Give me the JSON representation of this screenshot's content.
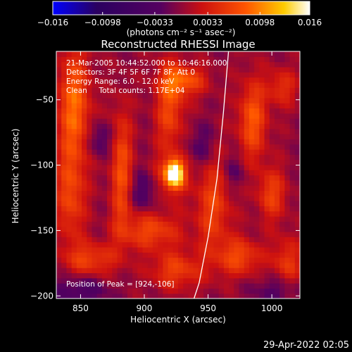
{
  "chart_data": {
    "type": "heatmap",
    "title": "Reconstructed RHESSI Image",
    "xlabel": "Heliocentric X (arcsec)",
    "ylabel": "Heliocentric Y (arcsec)",
    "xlim": [
      831,
      1022
    ],
    "ylim": [
      -202,
      -13
    ],
    "x_ticks": [
      850,
      900,
      950,
      1000
    ],
    "y_ticks": [
      -50,
      -100,
      -150,
      -200
    ],
    "colorbar": {
      "range": [
        -0.016,
        0.016
      ],
      "tick_values": [
        -0.016,
        -0.0098,
        -0.0033,
        0.0033,
        0.0098,
        0.016
      ],
      "tick_labels": [
        "−0.016",
        "−0.0098",
        "−0.0033",
        "0.0033",
        "0.0098",
        "0.016"
      ],
      "unit_label": "(photons cm⁻² s⁻¹ asec⁻²)",
      "colors": [
        "#0000ff",
        "#2a0060",
        "#550060",
        "#cc1010",
        "#ff5500",
        "#ffcc00",
        "#ffffff"
      ]
    },
    "annotations": [
      "21-Mar-2005 10:44:52.000 to 10:46:16.000",
      "Detectors: 3F 4F 5F 6F 7F 8F, Att 0",
      "Energy Range: 6.0 - 12.0 keV",
      "Clean     Total counts: 1.17E+04"
    ],
    "peak_label": "Position of Peak = [924,-106]",
    "peak": {
      "x": 924,
      "y": -106,
      "value": 0.016
    },
    "limb_curve": {
      "x": [
        966,
        962,
        957,
        950,
        943,
        939
      ],
      "y": [
        -13,
        -60,
        -110,
        -155,
        -190,
        -202
      ]
    },
    "blobs": [
      {
        "x": 924,
        "y": -106,
        "sx": 5,
        "sy": 7,
        "v": 0.016
      },
      {
        "x": 920,
        "y": -110,
        "sx": 9,
        "sy": 12,
        "v": 0.0045
      },
      {
        "x": 845,
        "y": -55,
        "sx": 9,
        "sy": 32,
        "v": 0.0085
      },
      {
        "x": 842,
        "y": -125,
        "sx": 8,
        "sy": 25,
        "v": 0.006
      },
      {
        "x": 858,
        "y": -172,
        "sx": 14,
        "sy": 9,
        "v": 0.006
      },
      {
        "x": 882,
        "y": -105,
        "sx": 6,
        "sy": 34,
        "v": 0.007
      },
      {
        "x": 920,
        "y": -55,
        "sx": 8,
        "sy": 25,
        "v": 0.0065
      },
      {
        "x": 932,
        "y": -35,
        "sx": 12,
        "sy": 8,
        "v": 0.007
      },
      {
        "x": 905,
        "y": -150,
        "sx": 16,
        "sy": 10,
        "v": 0.0065
      },
      {
        "x": 925,
        "y": -180,
        "sx": 14,
        "sy": 10,
        "v": 0.006
      },
      {
        "x": 954,
        "y": -130,
        "sx": 10,
        "sy": 28,
        "v": 0.006
      },
      {
        "x": 985,
        "y": -65,
        "sx": 8,
        "sy": 22,
        "v": 0.0075
      },
      {
        "x": 1000,
        "y": -122,
        "sx": 8,
        "sy": 14,
        "v": 0.006
      },
      {
        "x": 975,
        "y": -170,
        "sx": 12,
        "sy": 10,
        "v": 0.0065
      },
      {
        "x": 1012,
        "y": -175,
        "sx": 8,
        "sy": 14,
        "v": 0.0055
      },
      {
        "x": 1008,
        "y": -40,
        "sx": 8,
        "sy": 10,
        "v": 0.005
      },
      {
        "x": 865,
        "y": -80,
        "sx": 7,
        "sy": 9,
        "v": -0.004
      },
      {
        "x": 900,
        "y": -120,
        "sx": 8,
        "sy": 10,
        "v": -0.004
      },
      {
        "x": 945,
        "y": -85,
        "sx": 8,
        "sy": 12,
        "v": -0.0035
      },
      {
        "x": 850,
        "y": -195,
        "sx": 16,
        "sy": 8,
        "v": -0.004
      },
      {
        "x": 1005,
        "y": -195,
        "sx": 14,
        "sy": 8,
        "v": -0.0035
      },
      {
        "x": 970,
        "y": -105,
        "sx": 7,
        "sy": 10,
        "v": -0.003
      }
    ]
  },
  "footer": {
    "timestamp": "29-Apr-2022 02:05"
  }
}
